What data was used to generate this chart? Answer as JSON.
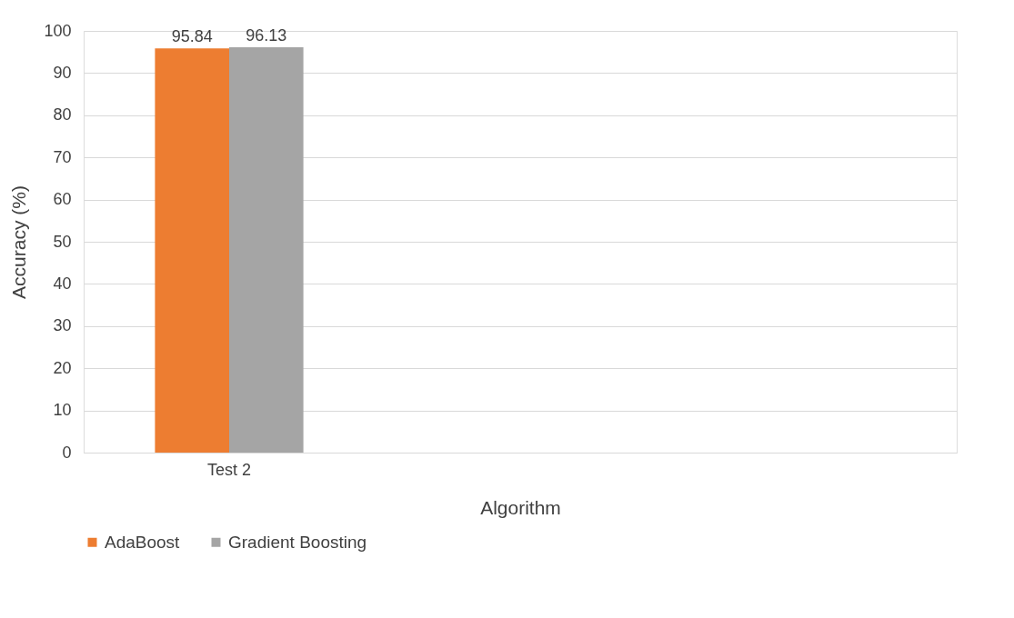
{
  "chart_data": {
    "type": "bar",
    "xlabel": "Algorithm",
    "ylabel": "Accuracy (%)",
    "categories": [
      "Test 2",
      null,
      null
    ],
    "series": [
      {
        "name": "AdaBoost",
        "color": "#ed7d31",
        "values": [
          95.84,
          null,
          null
        ]
      },
      {
        "name": "Gradient Boosting",
        "color": "#a5a5a5",
        "values": [
          96.13,
          null,
          null
        ]
      }
    ],
    "ylim": [
      0,
      100
    ],
    "yticks": [
      0,
      10,
      20,
      30,
      40,
      50,
      60,
      70,
      80,
      90,
      100
    ],
    "grid": "y",
    "legend": "bottom",
    "data_labels": true
  }
}
